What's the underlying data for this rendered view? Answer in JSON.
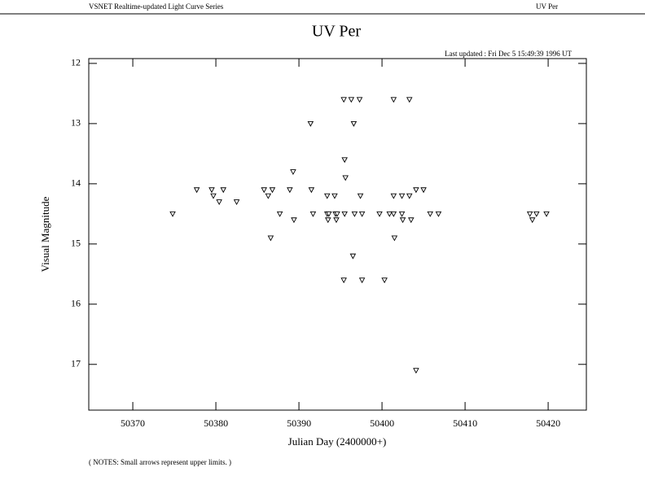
{
  "header": {
    "left": "VSNET Realtime-updated Light Curve Series",
    "right": "UV Per"
  },
  "chart_data": {
    "type": "scatter",
    "title": "UV Per",
    "subtitle": "Last updated :  Fri Dec 5 15:49:39 1996 UT",
    "x_label": "Julian Day (2400000+)",
    "y_label": "Visual Magnitude",
    "note": "( NOTES: Small arrows represent upper limits. )",
    "marker": "triangle-down",
    "color": "#000000",
    "xlim": [
      50364.7,
      50424.6
    ],
    "xticks": [
      50370,
      50380,
      50390,
      50400,
      50410,
      50420
    ],
    "ylim": [
      17.76,
      11.92
    ],
    "yticks": [
      12,
      13,
      14,
      15,
      16,
      17
    ],
    "x": [
      50374.8,
      50377.7,
      50379.5,
      50379.7,
      50380.4,
      50380.9,
      50382.5,
      50385.8,
      50386.3,
      50386.8,
      50386.6,
      50387.7,
      50388.9,
      50389.3,
      50389.4,
      50391.4,
      50391.5,
      50391.7,
      50393.4,
      50393.4,
      50393.6,
      50393.5,
      50394.3,
      50394.4,
      50394.6,
      50394.5,
      50395.4,
      50395.5,
      50395.6,
      50395.5,
      50395.4,
      50396.3,
      50396.6,
      50396.5,
      50396.7,
      50397.3,
      50397.4,
      50397.6,
      50397.6,
      50399.7,
      50400.3,
      50400.9,
      50401.4,
      50401.4,
      50401.4,
      50401.5,
      50402.4,
      50402.4,
      50402.5,
      50403.3,
      50403.3,
      50403.5,
      50404.1,
      50404.1,
      50405.0,
      50405.8,
      50406.8,
      50417.8,
      50418.1,
      50418.6,
      50419.8
    ],
    "values": [
      14.5,
      14.1,
      14.1,
      14.2,
      14.3,
      14.1,
      14.3,
      14.1,
      14.2,
      14.1,
      14.9,
      14.5,
      14.1,
      13.8,
      14.6,
      13.0,
      14.1,
      14.5,
      14.2,
      14.5,
      14.5,
      14.6,
      14.2,
      14.5,
      14.5,
      14.6,
      12.6,
      13.6,
      13.9,
      14.5,
      15.6,
      12.6,
      13.0,
      15.2,
      14.5,
      12.6,
      14.2,
      14.5,
      15.6,
      14.5,
      15.6,
      14.5,
      12.6,
      14.2,
      14.5,
      14.9,
      14.2,
      14.5,
      14.6,
      12.6,
      14.2,
      14.6,
      14.1,
      17.1,
      14.1,
      14.5,
      14.5,
      14.5,
      14.6,
      14.5,
      14.5
    ]
  }
}
